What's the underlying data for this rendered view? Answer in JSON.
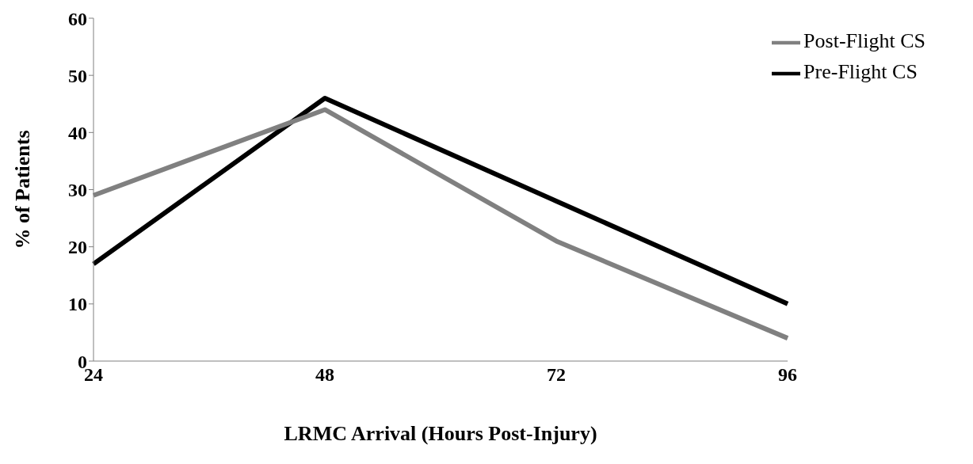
{
  "chart_data": {
    "type": "line",
    "xlabel": "LRMC Arrival (Hours Post-Injury)",
    "ylabel": "% of  Patients",
    "categories": [
      "24",
      "48",
      "72",
      "96"
    ],
    "series": [
      {
        "name": "Pre-Flight CS",
        "color": "#000000",
        "values": [
          17,
          46,
          28,
          10
        ]
      },
      {
        "name": "Post-Flight CS",
        "color": "#808080",
        "values": [
          29,
          44,
          21,
          4
        ]
      }
    ],
    "ylim": [
      0,
      60
    ],
    "yticks": [
      0,
      10,
      20,
      30,
      40,
      50,
      60
    ],
    "grid": false,
    "legend": "top right",
    "marker": "none",
    "line_style": "solid"
  }
}
